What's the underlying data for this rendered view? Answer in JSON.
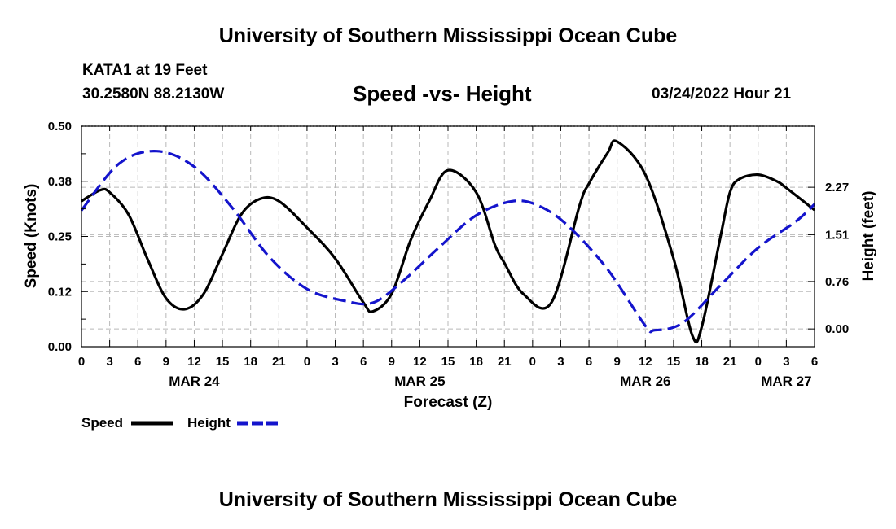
{
  "header": {
    "title": "University of Southern Mississippi Ocean Cube",
    "station": "KATA1 at 19 Feet",
    "coords": "30.2580N  88.2130W",
    "subtitle": "Speed -vs- Height",
    "datetime": "03/24/2022 Hour 21"
  },
  "footer": {
    "title": "University of Southern Mississippi Ocean Cube"
  },
  "chart_data": {
    "type": "line",
    "title": "Speed -vs- Height",
    "xlabel": "Forecast (Z)",
    "ylabel": "Speed (Knots)",
    "y2label": "Height (feet)",
    "xlim": [
      0,
      78
    ],
    "ylim": [
      0,
      0.5
    ],
    "y2lim": [
      -0.285,
      3.25
    ],
    "x_ticks": [
      0,
      3,
      6,
      9,
      12,
      15,
      18,
      21,
      24,
      27,
      30,
      33,
      36,
      39,
      42,
      45,
      48,
      51,
      54,
      57,
      60,
      63,
      66,
      69,
      72,
      75,
      78
    ],
    "x_tick_labels": [
      "0",
      "3",
      "6",
      "9",
      "12",
      "15",
      "18",
      "21",
      "0",
      "3",
      "6",
      "9",
      "12",
      "15",
      "18",
      "21",
      "0",
      "3",
      "6",
      "9",
      "12",
      "15",
      "18",
      "21",
      "0",
      "3",
      "6"
    ],
    "day_labels": [
      {
        "x": 12,
        "label": "MAR 24"
      },
      {
        "x": 36,
        "label": "MAR 25"
      },
      {
        "x": 60,
        "label": "MAR 26"
      },
      {
        "x": 75,
        "label": "MAR 27"
      }
    ],
    "y_ticks": [
      0,
      0.125,
      0.25,
      0.375,
      0.5
    ],
    "y_tick_labels": [
      "0.00",
      "0.12",
      "0.25",
      "0.38",
      "0.50"
    ],
    "y2_ticks": [
      0,
      0.76,
      1.51,
      2.27
    ],
    "y2_tick_labels": [
      "0.00",
      "0.76",
      "1.51",
      "2.27"
    ],
    "grid": true,
    "legend": [
      {
        "name": "Speed",
        "color": "#000000",
        "style": "solid"
      },
      {
        "name": "Height",
        "color": "#1414cc",
        "style": "dashed"
      }
    ],
    "series": [
      {
        "name": "Speed",
        "axis": "left",
        "color": "#000000",
        "x": [
          0,
          2,
          3,
          5,
          7,
          9,
          11,
          13,
          15,
          17,
          19,
          21,
          24,
          27,
          30,
          31,
          33,
          35,
          37,
          39,
          42,
          44,
          45,
          47,
          50,
          53,
          54,
          56,
          57,
          60,
          63,
          65,
          66,
          68,
          69,
          70,
          72,
          74,
          75,
          78
        ],
        "y": [
          0.33,
          0.355,
          0.35,
          0.3,
          0.2,
          0.11,
          0.085,
          0.12,
          0.21,
          0.3,
          0.335,
          0.33,
          0.27,
          0.2,
          0.1,
          0.08,
          0.12,
          0.24,
          0.33,
          0.4,
          0.35,
          0.23,
          0.19,
          0.12,
          0.1,
          0.32,
          0.37,
          0.44,
          0.465,
          0.39,
          0.2,
          0.025,
          0.045,
          0.25,
          0.35,
          0.38,
          0.39,
          0.375,
          0.36,
          0.31
        ]
      },
      {
        "name": "Height",
        "axis": "right",
        "color": "#1414cc",
        "x": [
          0,
          4,
          8,
          12,
          16,
          20,
          24,
          28,
          31,
          34,
          38,
          42,
          46,
          49,
          52,
          56,
          60,
          61,
          64,
          68,
          72,
          76,
          78
        ],
        "y": [
          1.9,
          2.65,
          2.85,
          2.6,
          1.95,
          1.15,
          0.64,
          0.45,
          0.42,
          0.74,
          1.3,
          1.82,
          2.05,
          1.95,
          1.62,
          0.95,
          0.05,
          -0.02,
          0.1,
          0.7,
          1.3,
          1.72,
          2.0
        ]
      }
    ]
  }
}
